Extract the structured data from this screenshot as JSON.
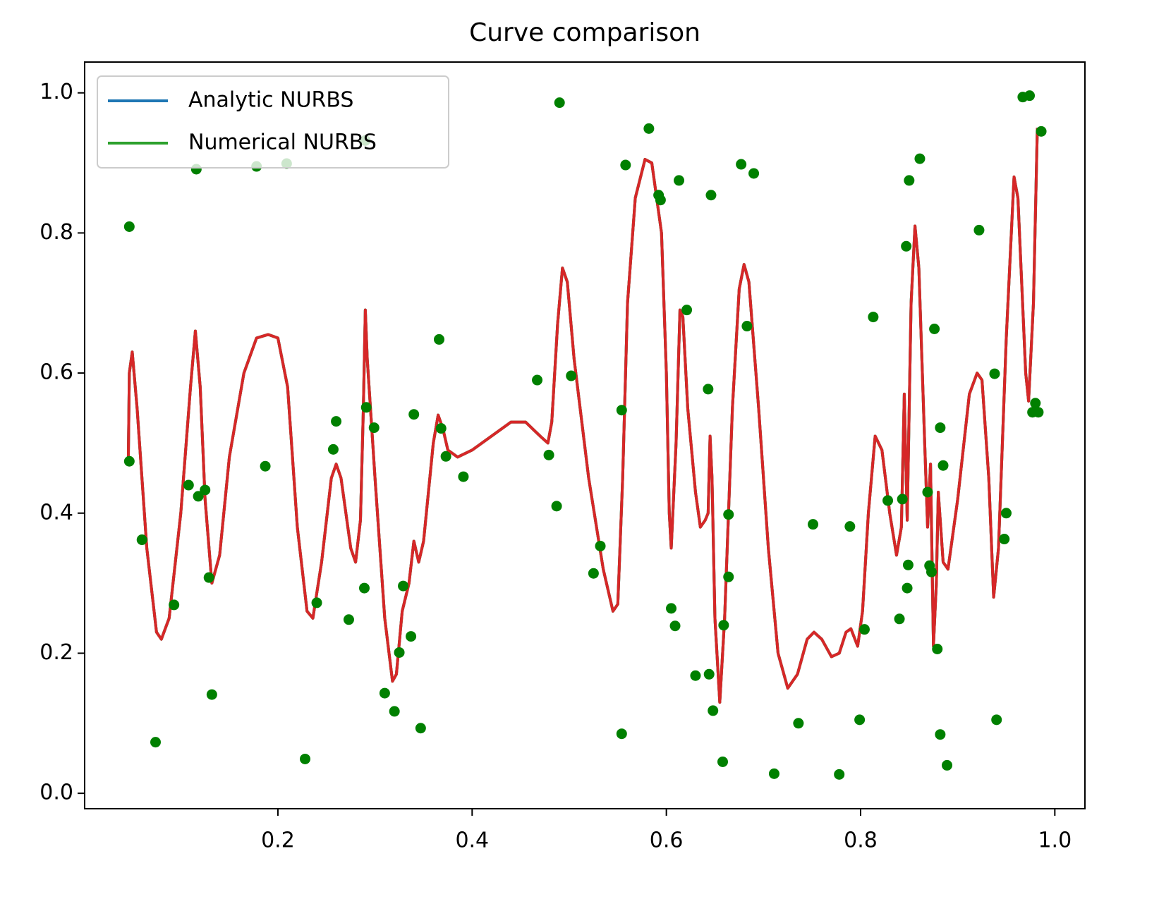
{
  "chart_data": {
    "type": "line",
    "title": "Curve comparison",
    "xlim": [
      0.001,
      1.031
    ],
    "ylim": [
      -0.022,
      1.044
    ],
    "xticks": [
      0.2,
      0.4,
      0.6,
      0.8,
      {
        "value": 1.0,
        "label": "1.0"
      }
    ],
    "yticks": [
      {
        "value": 0,
        "label": "0.0"
      },
      0.2,
      0.4,
      0.6,
      0.8,
      {
        "value": 1.0,
        "label": "1.0"
      }
    ],
    "legend": "upper left",
    "x": [
      0.046,
      0.047,
      0.05,
      0.055,
      0.065,
      0.075,
      0.08,
      0.088,
      0.1,
      0.11,
      0.115,
      0.12,
      0.125,
      0.132,
      0.14,
      0.15,
      0.165,
      0.178,
      0.19,
      0.2,
      0.21,
      0.22,
      0.23,
      0.236,
      0.245,
      0.255,
      0.26,
      0.265,
      0.275,
      0.28,
      0.285,
      0.288,
      0.29,
      0.292,
      0.3,
      0.31,
      0.318,
      0.322,
      0.328,
      0.335,
      0.34,
      0.345,
      0.35,
      0.36,
      0.365,
      0.37,
      0.375,
      0.385,
      0.4,
      0.42,
      0.44,
      0.455,
      0.47,
      0.478,
      0.482,
      0.488,
      0.493,
      0.498,
      0.505,
      0.52,
      0.535,
      0.545,
      0.55,
      0.555,
      0.56,
      0.568,
      0.578,
      0.585,
      0.595,
      0.6,
      0.603,
      0.605,
      0.61,
      0.614,
      0.617,
      0.622,
      0.63,
      0.635,
      0.64,
      0.643,
      0.645,
      0.647,
      0.65,
      0.655,
      0.66,
      0.668,
      0.675,
      0.68,
      0.685,
      0.695,
      0.705,
      0.715,
      0.725,
      0.735,
      0.745,
      0.752,
      0.76,
      0.77,
      0.778,
      0.785,
      0.79,
      0.797,
      0.802,
      0.808,
      0.815,
      0.822,
      0.83,
      0.837,
      0.842,
      0.845,
      0.848,
      0.852,
      0.856,
      0.86,
      0.866,
      0.869,
      0.872,
      0.875,
      0.878,
      0.88,
      0.885,
      0.89,
      0.9,
      0.912,
      0.92,
      0.925,
      0.932,
      0.937,
      0.942,
      0.95,
      0.958,
      0.962,
      0.97,
      0.973,
      0.978,
      0.982
    ],
    "series": [
      {
        "name": "Analytic NURBS",
        "color": "#1f77b4",
        "values": [
          0.48,
          0.6,
          0.63,
          0.55,
          0.35,
          0.23,
          0.22,
          0.25,
          0.4,
          0.58,
          0.66,
          0.58,
          0.42,
          0.3,
          0.34,
          0.48,
          0.6,
          0.65,
          0.655,
          0.65,
          0.58,
          0.38,
          0.26,
          0.25,
          0.33,
          0.45,
          0.47,
          0.45,
          0.35,
          0.33,
          0.39,
          0.55,
          0.69,
          0.62,
          0.45,
          0.25,
          0.16,
          0.17,
          0.26,
          0.3,
          0.36,
          0.33,
          0.36,
          0.5,
          0.54,
          0.52,
          0.49,
          0.48,
          0.49,
          0.51,
          0.53,
          0.53,
          0.51,
          0.5,
          0.53,
          0.67,
          0.75,
          0.73,
          0.62,
          0.45,
          0.32,
          0.26,
          0.27,
          0.45,
          0.7,
          0.85,
          0.905,
          0.9,
          0.8,
          0.6,
          0.4,
          0.35,
          0.5,
          0.69,
          0.68,
          0.55,
          0.43,
          0.38,
          0.39,
          0.4,
          0.51,
          0.45,
          0.25,
          0.13,
          0.25,
          0.55,
          0.72,
          0.755,
          0.73,
          0.55,
          0.35,
          0.2,
          0.15,
          0.17,
          0.22,
          0.23,
          0.22,
          0.195,
          0.2,
          0.23,
          0.235,
          0.21,
          0.26,
          0.4,
          0.51,
          0.49,
          0.4,
          0.34,
          0.38,
          0.57,
          0.39,
          0.7,
          0.81,
          0.75,
          0.5,
          0.38,
          0.47,
          0.21,
          0.3,
          0.43,
          0.33,
          0.32,
          0.42,
          0.57,
          0.6,
          0.59,
          0.45,
          0.28,
          0.35,
          0.65,
          0.88,
          0.85,
          0.6,
          0.56,
          0.7,
          0.95
        ]
      },
      {
        "name": "Numerical NURBS",
        "color": "#2ca02c",
        "values": [
          0.48,
          0.6,
          0.63,
          0.55,
          0.35,
          0.23,
          0.22,
          0.25,
          0.4,
          0.58,
          0.66,
          0.58,
          0.42,
          0.3,
          0.34,
          0.48,
          0.6,
          0.65,
          0.655,
          0.65,
          0.58,
          0.38,
          0.26,
          0.25,
          0.33,
          0.45,
          0.47,
          0.45,
          0.35,
          0.33,
          0.39,
          0.55,
          0.69,
          0.62,
          0.45,
          0.25,
          0.16,
          0.17,
          0.26,
          0.3,
          0.36,
          0.33,
          0.36,
          0.5,
          0.54,
          0.52,
          0.49,
          0.48,
          0.49,
          0.51,
          0.53,
          0.53,
          0.51,
          0.5,
          0.53,
          0.67,
          0.75,
          0.73,
          0.62,
          0.45,
          0.32,
          0.26,
          0.27,
          0.45,
          0.7,
          0.85,
          0.905,
          0.9,
          0.8,
          0.6,
          0.4,
          0.35,
          0.5,
          0.69,
          0.68,
          0.55,
          0.43,
          0.38,
          0.39,
          0.4,
          0.51,
          0.45,
          0.25,
          0.13,
          0.25,
          0.55,
          0.72,
          0.755,
          0.73,
          0.55,
          0.35,
          0.2,
          0.15,
          0.17,
          0.22,
          0.23,
          0.22,
          0.195,
          0.2,
          0.23,
          0.235,
          0.21,
          0.26,
          0.4,
          0.51,
          0.49,
          0.4,
          0.34,
          0.38,
          0.57,
          0.39,
          0.7,
          0.81,
          0.75,
          0.5,
          0.38,
          0.47,
          0.21,
          0.3,
          0.43,
          0.33,
          0.32,
          0.42,
          0.57,
          0.6,
          0.59,
          0.45,
          0.28,
          0.35,
          0.65,
          0.88,
          0.85,
          0.6,
          0.56,
          0.7,
          0.95
        ]
      },
      {
        "color": "#d62728",
        "values": [
          0.48,
          0.6,
          0.63,
          0.55,
          0.35,
          0.23,
          0.22,
          0.25,
          0.4,
          0.58,
          0.66,
          0.58,
          0.42,
          0.3,
          0.34,
          0.48,
          0.6,
          0.65,
          0.655,
          0.65,
          0.58,
          0.38,
          0.26,
          0.25,
          0.33,
          0.45,
          0.47,
          0.45,
          0.35,
          0.33,
          0.39,
          0.55,
          0.69,
          0.62,
          0.45,
          0.25,
          0.16,
          0.17,
          0.26,
          0.3,
          0.36,
          0.33,
          0.36,
          0.5,
          0.54,
          0.52,
          0.49,
          0.48,
          0.49,
          0.51,
          0.53,
          0.53,
          0.51,
          0.5,
          0.53,
          0.67,
          0.75,
          0.73,
          0.62,
          0.45,
          0.32,
          0.26,
          0.27,
          0.45,
          0.7,
          0.85,
          0.905,
          0.9,
          0.8,
          0.6,
          0.4,
          0.35,
          0.5,
          0.69,
          0.68,
          0.55,
          0.43,
          0.38,
          0.39,
          0.4,
          0.51,
          0.45,
          0.25,
          0.13,
          0.25,
          0.55,
          0.72,
          0.755,
          0.73,
          0.55,
          0.35,
          0.2,
          0.15,
          0.17,
          0.22,
          0.23,
          0.22,
          0.195,
          0.2,
          0.23,
          0.235,
          0.21,
          0.26,
          0.4,
          0.51,
          0.49,
          0.4,
          0.34,
          0.38,
          0.57,
          0.39,
          0.7,
          0.81,
          0.75,
          0.5,
          0.38,
          0.47,
          0.21,
          0.3,
          0.43,
          0.33,
          0.32,
          0.42,
          0.57,
          0.6,
          0.59,
          0.45,
          0.28,
          0.35,
          0.65,
          0.88,
          0.85,
          0.6,
          0.56,
          0.7,
          0.95
        ]
      }
    ],
    "points": {
      "color": "#008000",
      "x": [
        0.047,
        0.047,
        0.06,
        0.074,
        0.093,
        0.108,
        0.116,
        0.118,
        0.125,
        0.129,
        0.132,
        0.178,
        0.187,
        0.209,
        0.228,
        0.24,
        0.257,
        0.26,
        0.273,
        0.289,
        0.29,
        0.291,
        0.299,
        0.31,
        0.32,
        0.325,
        0.329,
        0.337,
        0.34,
        0.347,
        0.366,
        0.368,
        0.373,
        0.391,
        0.467,
        0.479,
        0.487,
        0.49,
        0.502,
        0.525,
        0.532,
        0.554,
        0.554,
        0.558,
        0.582,
        0.592,
        0.594,
        0.605,
        0.609,
        0.613,
        0.621,
        0.63,
        0.643,
        0.644,
        0.646,
        0.648,
        0.658,
        0.659,
        0.664,
        0.664,
        0.677,
        0.683,
        0.69,
        0.711,
        0.736,
        0.751,
        0.778,
        0.789,
        0.799,
        0.804,
        0.813,
        0.828,
        0.84,
        0.843,
        0.847,
        0.848,
        0.849,
        0.85,
        0.861,
        0.869,
        0.871,
        0.873,
        0.876,
        0.879,
        0.882,
        0.882,
        0.885,
        0.889,
        0.922,
        0.938,
        0.94,
        0.948,
        0.95,
        0.967,
        0.974,
        0.977,
        0.98,
        0.983,
        0.986
      ],
      "y": [
        0.809,
        0.474,
        0.362,
        0.073,
        0.269,
        0.44,
        0.891,
        0.424,
        0.433,
        0.308,
        0.141,
        0.895,
        0.467,
        0.899,
        0.049,
        0.272,
        0.491,
        0.531,
        0.248,
        0.293,
        0.932,
        0.551,
        0.522,
        0.143,
        0.117,
        0.201,
        0.296,
        0.224,
        0.541,
        0.093,
        0.648,
        0.521,
        0.481,
        0.452,
        0.59,
        0.483,
        0.41,
        0.986,
        0.596,
        0.314,
        0.353,
        0.085,
        0.547,
        0.897,
        0.949,
        0.854,
        0.847,
        0.264,
        0.239,
        0.875,
        0.69,
        0.168,
        0.577,
        0.17,
        0.854,
        0.118,
        0.045,
        0.24,
        0.398,
        0.309,
        0.898,
        0.667,
        0.885,
        0.028,
        0.1,
        0.384,
        0.027,
        0.381,
        0.105,
        0.234,
        0.68,
        0.418,
        0.249,
        0.42,
        0.781,
        0.293,
        0.326,
        0.875,
        0.906,
        0.43,
        0.325,
        0.316,
        0.663,
        0.206,
        0.084,
        0.522,
        0.468,
        0.04,
        0.804,
        0.599,
        0.105,
        0.363,
        0.4,
        0.994,
        0.996,
        0.544,
        0.557,
        0.544,
        0.945
      ]
    }
  }
}
